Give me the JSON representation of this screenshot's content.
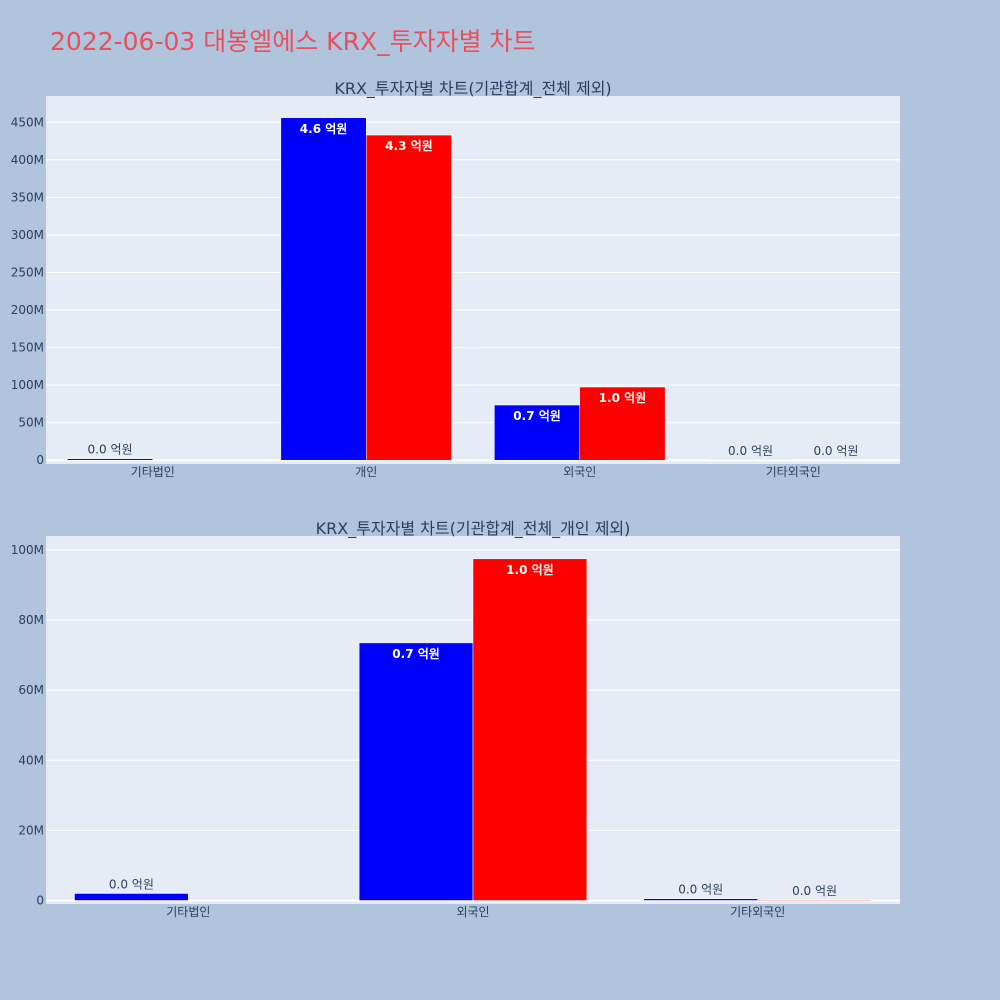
{
  "page": {
    "title": "2022-06-03 대봉엘에스 KRX_투자자별 차트"
  },
  "colors": {
    "background": "#b0c4de",
    "plot_bg": "#e5ecf6",
    "buy": "#0000ff",
    "sell": "#ff0000",
    "title": "#e8505b"
  },
  "chart_data": [
    {
      "type": "bar",
      "title": "KRX_투자자별 차트(기관합계_전체 제외)",
      "categories": [
        "기타법인",
        "개인",
        "외국인",
        "기타외국인"
      ],
      "yticks": [
        0,
        50000000,
        100000000,
        150000000,
        200000000,
        250000000,
        300000000,
        350000000,
        400000000,
        450000000
      ],
      "ytick_labels": [
        "0",
        "50M",
        "100M",
        "150M",
        "200M",
        "250M",
        "300M",
        "350M",
        "400M",
        "450M"
      ],
      "ylim": [
        -5000000,
        485000000
      ],
      "grid": true,
      "series": [
        {
          "values": [
            2000000,
            456000000,
            73500000,
            500000
          ],
          "labels": [
            "0.0 억원",
            "4.6 억원",
            "0.7 억원",
            "0.0 억원"
          ]
        },
        {
          "values": [
            0,
            433000000,
            97500000,
            200000
          ],
          "labels": [
            "",
            "4.3 억원",
            "1.0 억원",
            "0.0 억원"
          ]
        }
      ]
    },
    {
      "type": "bar",
      "title": "KRX_투자자별 차트(기관합계_전체_개인 제외)",
      "categories": [
        "기타법인",
        "외국인",
        "기타외국인"
      ],
      "yticks": [
        0,
        20000000,
        40000000,
        60000000,
        80000000,
        100000000
      ],
      "ytick_labels": [
        "0",
        "20M",
        "40M",
        "60M",
        "80M",
        "100M"
      ],
      "ylim": [
        -1000000,
        104000000
      ],
      "grid": true,
      "series": [
        {
          "values": [
            2000000,
            73500000,
            500000
          ],
          "labels": [
            "0.0 억원",
            "0.7 억원",
            "0.0 억원"
          ]
        },
        {
          "values": [
            0,
            97500000,
            200000
          ],
          "labels": [
            "",
            "1.0 억원",
            "0.0 억원"
          ]
        }
      ]
    }
  ]
}
